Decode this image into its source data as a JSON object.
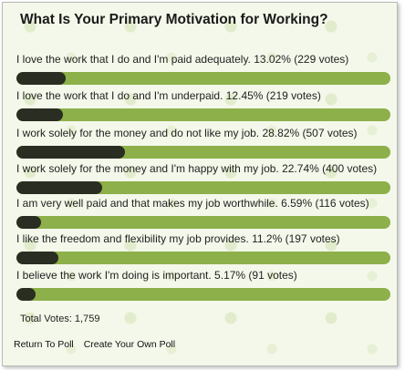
{
  "poll": {
    "title": "What Is Your Primary Motivation for Working?",
    "answers": [
      {
        "label": "I love the work that I do and I'm paid adequately. 13.02% (229 votes)",
        "percent": 13.02
      },
      {
        "label": "I love the work that I do and I'm underpaid. 12.45% (219 votes)",
        "percent": 12.45
      },
      {
        "label": "I work solely for the money and do not like my job. 28.82% (507 votes)",
        "percent": 28.82
      },
      {
        "label": "I work solely for the money and I'm happy with my job. 22.74% (400 votes)",
        "percent": 22.74
      },
      {
        "label": "I am very well paid and that makes my job worthwhile. 6.59% (116 votes)",
        "percent": 6.59
      },
      {
        "label": "I like the freedom and flexibility my job provides. 11.2% (197 votes)",
        "percent": 11.2
      },
      {
        "label": "I believe the work I'm doing is important. 5.17% (91 votes)",
        "percent": 5.17
      }
    ],
    "total_votes": "Total Votes: 1,759"
  },
  "links": {
    "return_label": "Return To Poll",
    "create_label": "Create Your Own Poll"
  },
  "colors": {
    "bar_track": "#8db04a",
    "bar_fill": "#2a2d22",
    "background": "#f4f8ea"
  }
}
